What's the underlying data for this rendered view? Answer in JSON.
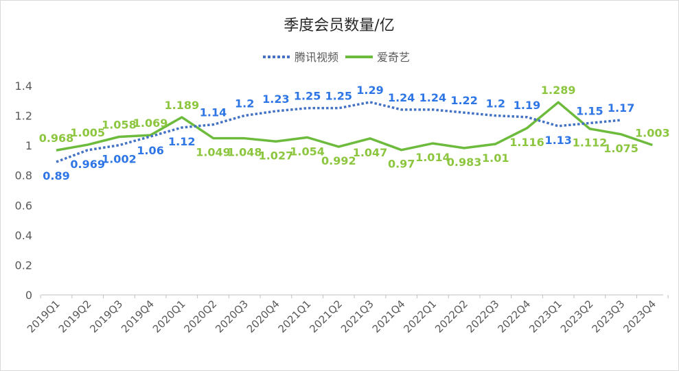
{
  "chart_data": {
    "type": "line",
    "title": "季度会员数量/亿",
    "xlabel": "",
    "ylabel": "",
    "ylim": [
      0,
      1.4
    ],
    "yticks": [
      "0",
      "0.2",
      "0.4",
      "0.6",
      "0.8",
      "1",
      "1.2",
      "1.4"
    ],
    "legend_position": "top-center",
    "grid": false,
    "categories": [
      "2019Q1",
      "2019Q2",
      "2019Q3",
      "2019Q4",
      "2020Q1",
      "2020Q2",
      "2020Q3",
      "2020Q4",
      "2021Q1",
      "2021Q2",
      "2021Q3",
      "2021Q4",
      "2022Q1",
      "2022Q2",
      "2022Q3",
      "2022Q4",
      "2023Q1",
      "2023Q2",
      "2023Q3",
      "2023Q4"
    ],
    "series": [
      {
        "name": "腾讯视频",
        "color": "#4472C4",
        "style": "dotted",
        "label_color": "#2E75E6",
        "values": [
          0.89,
          0.969,
          1.002,
          1.06,
          1.12,
          1.14,
          1.2,
          1.23,
          1.25,
          1.25,
          1.29,
          1.24,
          1.24,
          1.22,
          1.2,
          1.19,
          1.13,
          1.15,
          1.17,
          null
        ],
        "labels": [
          "0.89",
          "0.969",
          "1.002",
          "1.06",
          "1.12",
          "1.14",
          "1.2",
          "1.23",
          "1.25",
          "1.25",
          "1.29",
          "1.24",
          "1.24",
          "1.22",
          "1.2",
          "1.19",
          "1.13",
          "1.15",
          "1.17",
          null
        ]
      },
      {
        "name": "爱奇艺",
        "color": "#6DBB3C",
        "style": "solid",
        "label_color": "#8CC63F",
        "values": [
          0.968,
          1.005,
          1.058,
          1.069,
          1.189,
          1.049,
          1.048,
          1.027,
          1.054,
          0.992,
          1.047,
          0.97,
          1.014,
          0.983,
          1.01,
          1.116,
          1.289,
          1.112,
          1.075,
          1.003
        ],
        "labels": [
          "0.968",
          "1.005",
          "1.058",
          "1.069",
          "1.189",
          "1.049",
          "1.048",
          "1.027",
          "1.054",
          "0.992",
          "1.047",
          "0.97",
          "1.014",
          "0.983",
          "1.01",
          "1.116",
          "1.289",
          "1.112",
          "1.075",
          "1.003"
        ]
      }
    ],
    "drop_lines": {
      "color": "#2E75E6"
    },
    "axis_color": "#BFBFBF",
    "tick_text_color": "#595959",
    "title_color": "#262626"
  }
}
